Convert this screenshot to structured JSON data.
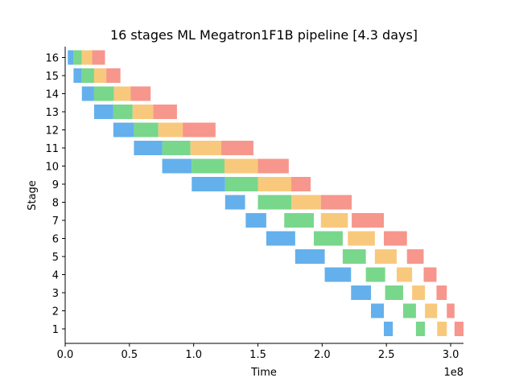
{
  "chart_data": {
    "type": "bar",
    "title": "16 stages ML Megatron1F1B pipeline [4.3 days]",
    "xlabel": "Time",
    "ylabel": "Stage",
    "x_offset_text": "1e8",
    "xlim": [
      0,
      3.1
    ],
    "ylim": [
      0.2,
      16.6
    ],
    "x_ticks": [
      0.0,
      0.5,
      1.0,
      1.5,
      2.0,
      2.5,
      3.0
    ],
    "x_tick_labels": [
      "0.0",
      "0.5",
      "1.0",
      "1.5",
      "2.0",
      "2.5",
      "3.0"
    ],
    "y_ticks": [
      1,
      2,
      3,
      4,
      5,
      6,
      7,
      8,
      9,
      10,
      11,
      12,
      13,
      14,
      15,
      16
    ],
    "y_tick_labels": [
      "1",
      "2",
      "3",
      "4",
      "5",
      "6",
      "7",
      "8",
      "9",
      "10",
      "11",
      "12",
      "13",
      "14",
      "15",
      "16"
    ],
    "grid": false,
    "legend": "none",
    "colors": [
      "#64b0ec",
      "#78d78b",
      "#f8c97c",
      "#f7968c"
    ],
    "stages": [
      {
        "stage": 16,
        "segments": [
          [
            0.02,
            0.065,
            0
          ],
          [
            0.065,
            0.13,
            1
          ],
          [
            0.13,
            0.21,
            2
          ],
          [
            0.21,
            0.31,
            3
          ]
        ]
      },
      {
        "stage": 15,
        "segments": [
          [
            0.065,
            0.13,
            0
          ],
          [
            0.13,
            0.225,
            1
          ],
          [
            0.225,
            0.32,
            2
          ],
          [
            0.32,
            0.43,
            3
          ]
        ]
      },
      {
        "stage": 14,
        "segments": [
          [
            0.13,
            0.225,
            0
          ],
          [
            0.225,
            0.38,
            1
          ],
          [
            0.38,
            0.51,
            2
          ],
          [
            0.51,
            0.665,
            3
          ]
        ]
      },
      {
        "stage": 13,
        "segments": [
          [
            0.225,
            0.375,
            0
          ],
          [
            0.375,
            0.525,
            1
          ],
          [
            0.525,
            0.685,
            2
          ],
          [
            0.685,
            0.87,
            3
          ]
        ]
      },
      {
        "stage": 12,
        "segments": [
          [
            0.375,
            0.535,
            0
          ],
          [
            0.535,
            0.725,
            1
          ],
          [
            0.725,
            0.915,
            2
          ],
          [
            0.915,
            1.17,
            3
          ]
        ]
      },
      {
        "stage": 11,
        "segments": [
          [
            0.535,
            0.755,
            0
          ],
          [
            0.755,
            0.975,
            1
          ],
          [
            0.975,
            1.215,
            2
          ],
          [
            1.215,
            1.465,
            3
          ]
        ]
      },
      {
        "stage": 10,
        "segments": [
          [
            0.755,
            0.985,
            0
          ],
          [
            0.985,
            1.24,
            1
          ],
          [
            1.24,
            1.5,
            2
          ],
          [
            1.5,
            1.74,
            3
          ]
        ]
      },
      {
        "stage": 9,
        "segments": [
          [
            0.985,
            1.245,
            0
          ],
          [
            1.245,
            1.5,
            1
          ],
          [
            1.5,
            1.76,
            2
          ],
          [
            1.76,
            1.91,
            3
          ]
        ]
      },
      {
        "stage": 8,
        "segments": [
          [
            1.245,
            1.4,
            0
          ],
          [
            1.5,
            1.76,
            1
          ],
          [
            1.76,
            1.99,
            2
          ],
          [
            1.99,
            2.23,
            3
          ]
        ]
      },
      {
        "stage": 7,
        "segments": [
          [
            1.405,
            1.565,
            0
          ],
          [
            1.705,
            1.935,
            1
          ],
          [
            1.99,
            2.2,
            2
          ],
          [
            2.23,
            2.48,
            3
          ]
        ]
      },
      {
        "stage": 6,
        "segments": [
          [
            1.565,
            1.79,
            0
          ],
          [
            1.935,
            2.16,
            1
          ],
          [
            2.2,
            2.41,
            2
          ],
          [
            2.48,
            2.66,
            3
          ]
        ]
      },
      {
        "stage": 5,
        "segments": [
          [
            1.79,
            2.02,
            0
          ],
          [
            2.16,
            2.34,
            1
          ],
          [
            2.41,
            2.58,
            2
          ],
          [
            2.66,
            2.79,
            3
          ]
        ]
      },
      {
        "stage": 4,
        "segments": [
          [
            2.02,
            2.225,
            0
          ],
          [
            2.34,
            2.49,
            1
          ],
          [
            2.58,
            2.7,
            2
          ],
          [
            2.79,
            2.89,
            3
          ]
        ]
      },
      {
        "stage": 3,
        "segments": [
          [
            2.225,
            2.38,
            0
          ],
          [
            2.49,
            2.63,
            1
          ],
          [
            2.7,
            2.8,
            2
          ],
          [
            2.89,
            2.97,
            3
          ]
        ]
      },
      {
        "stage": 2,
        "segments": [
          [
            2.38,
            2.48,
            0
          ],
          [
            2.63,
            2.73,
            1
          ],
          [
            2.8,
            2.895,
            2
          ],
          [
            2.97,
            3.03,
            3
          ]
        ]
      },
      {
        "stage": 1,
        "segments": [
          [
            2.48,
            2.55,
            0
          ],
          [
            2.73,
            2.8,
            1
          ],
          [
            2.895,
            2.97,
            2
          ],
          [
            3.03,
            3.1,
            3
          ]
        ]
      }
    ]
  }
}
